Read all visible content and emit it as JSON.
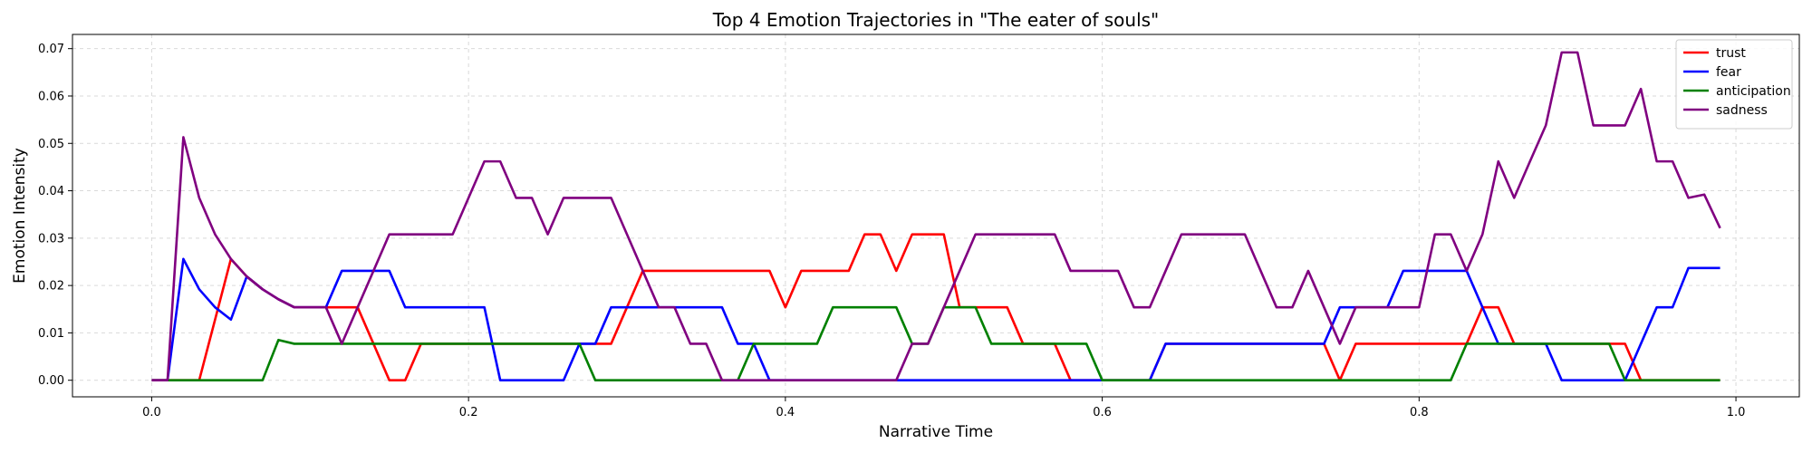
{
  "chart_data": {
    "type": "line",
    "title": "Top 4 Emotion Trajectories in \"The eater of souls\"",
    "xlabel": "Narrative Time",
    "ylabel": "Emotion Intensity",
    "xlim": [
      -0.05,
      1.04
    ],
    "ylim": [
      -0.0035,
      0.073
    ],
    "x_ticks": [
      0.0,
      0.2,
      0.4,
      0.6,
      0.8,
      1.0
    ],
    "x_tick_labels": [
      "0.0",
      "0.2",
      "0.4",
      "0.6",
      "0.8",
      "1.0"
    ],
    "y_ticks": [
      0.0,
      0.01,
      0.02,
      0.03,
      0.04,
      0.05,
      0.06,
      0.07
    ],
    "y_tick_labels": [
      "0.00",
      "0.01",
      "0.02",
      "0.03",
      "0.04",
      "0.05",
      "0.06",
      "0.07"
    ],
    "grid": true,
    "legend_position": "top-right",
    "x": [
      0.0,
      0.01,
      0.02,
      0.03,
      0.04,
      0.05,
      0.06,
      0.07,
      0.08,
      0.09,
      0.1,
      0.11,
      0.12,
      0.13,
      0.14,
      0.15,
      0.16,
      0.17,
      0.18,
      0.19,
      0.2,
      0.21,
      0.22,
      0.23,
      0.24,
      0.25,
      0.26,
      0.27,
      0.28,
      0.29,
      0.3,
      0.31,
      0.32,
      0.33,
      0.34,
      0.35,
      0.36,
      0.37,
      0.38,
      0.39,
      0.4,
      0.41,
      0.42,
      0.43,
      0.44,
      0.45,
      0.46,
      0.47,
      0.48,
      0.49,
      0.5,
      0.51,
      0.52,
      0.53,
      0.54,
      0.55,
      0.56,
      0.57,
      0.58,
      0.59,
      0.6,
      0.61,
      0.62,
      0.63,
      0.64,
      0.65,
      0.66,
      0.67,
      0.68,
      0.69,
      0.7,
      0.71,
      0.72,
      0.73,
      0.74,
      0.75,
      0.76,
      0.77,
      0.78,
      0.79,
      0.8,
      0.81,
      0.82,
      0.83,
      0.84,
      0.85,
      0.86,
      0.87,
      0.88,
      0.89,
      0.9,
      0.91,
      0.92,
      0.93,
      0.94,
      0.95,
      0.96,
      0.97,
      0.98,
      0.99
    ],
    "series": [
      {
        "name": "trust",
        "color": "#ff0000",
        "values": [
          0,
          0,
          0,
          0,
          0.0128,
          0.0256,
          0.0219,
          0.0192,
          0.0171,
          0.0154,
          0.0154,
          0.0154,
          0.0154,
          0.0154,
          0.0077,
          0,
          0,
          0.0077,
          0.0077,
          0.0077,
          0.0077,
          0.0077,
          0.0077,
          0.0077,
          0.0077,
          0.0077,
          0.0077,
          0.0077,
          0.0077,
          0.0077,
          0.0154,
          0.0231,
          0.0231,
          0.0231,
          0.0231,
          0.0231,
          0.0231,
          0.0231,
          0.0231,
          0.0231,
          0.0154,
          0.0231,
          0.0231,
          0.0231,
          0.0231,
          0.0308,
          0.0308,
          0.0231,
          0.0308,
          0.0308,
          0.0308,
          0.0154,
          0.0154,
          0.0154,
          0.0154,
          0.0077,
          0.0077,
          0.0077,
          0,
          0,
          0,
          0,
          0,
          0,
          0.0077,
          0.0077,
          0.0077,
          0.0077,
          0.0077,
          0.0077,
          0.0077,
          0.0077,
          0.0077,
          0.0077,
          0.0077,
          0,
          0.0077,
          0.0077,
          0.0077,
          0.0077,
          0.0077,
          0.0077,
          0.0077,
          0.0077,
          0.0154,
          0.0154,
          0.0077,
          0.0077,
          0.0077,
          0.0077,
          0.0077,
          0.0077,
          0.0077,
          0.0077,
          0,
          0,
          0,
          0,
          0,
          0
        ]
      },
      {
        "name": "fear",
        "color": "#0000ff",
        "values": [
          0,
          0,
          0.0256,
          0.0192,
          0.0154,
          0.0128,
          0.0219,
          0.0192,
          0.0171,
          0.0154,
          0.0154,
          0.0154,
          0.0231,
          0.0231,
          0.0231,
          0.0231,
          0.0154,
          0.0154,
          0.0154,
          0.0154,
          0.0154,
          0.0154,
          0,
          0,
          0,
          0,
          0,
          0.0077,
          0.0077,
          0.0154,
          0.0154,
          0.0154,
          0.0154,
          0.0154,
          0.0154,
          0.0154,
          0.0154,
          0.0077,
          0.0077,
          0,
          0,
          0,
          0,
          0,
          0,
          0,
          0,
          0,
          0,
          0,
          0,
          0,
          0,
          0,
          0,
          0,
          0,
          0,
          0,
          0,
          0,
          0,
          0,
          0,
          0.0077,
          0.0077,
          0.0077,
          0.0077,
          0.0077,
          0.0077,
          0.0077,
          0.0077,
          0.0077,
          0.0077,
          0.0077,
          0.0154,
          0.0154,
          0.0154,
          0.0154,
          0.0231,
          0.0231,
          0.0231,
          0.0231,
          0.0231,
          0.0154,
          0.0077,
          0.0077,
          0.0077,
          0.0077,
          0,
          0,
          0,
          0,
          0,
          0.0077,
          0.0154,
          0.0154,
          0.0237,
          0.0237,
          0.0237
        ]
      },
      {
        "name": "anticipation",
        "color": "#008000",
        "values": [
          0,
          0,
          0,
          0,
          0,
          0,
          0,
          0,
          0.0085,
          0.0077,
          0.0077,
          0.0077,
          0.0077,
          0.0077,
          0.0077,
          0.0077,
          0.0077,
          0.0077,
          0.0077,
          0.0077,
          0.0077,
          0.0077,
          0.0077,
          0.0077,
          0.0077,
          0.0077,
          0.0077,
          0.0077,
          0,
          0,
          0,
          0,
          0,
          0,
          0,
          0,
          0,
          0,
          0.0077,
          0.0077,
          0.0077,
          0.0077,
          0.0077,
          0.0154,
          0.0154,
          0.0154,
          0.0154,
          0.0154,
          0.0077,
          0.0077,
          0.0154,
          0.0154,
          0.0154,
          0.0077,
          0.0077,
          0.0077,
          0.0077,
          0.0077,
          0.0077,
          0.0077,
          0,
          0,
          0,
          0,
          0,
          0,
          0,
          0,
          0,
          0,
          0,
          0,
          0,
          0,
          0,
          0,
          0,
          0,
          0,
          0,
          0,
          0,
          0,
          0.0077,
          0.0077,
          0.0077,
          0.0077,
          0.0077,
          0.0077,
          0.0077,
          0.0077,
          0.0077,
          0.0077,
          0,
          0,
          0,
          0,
          0,
          0,
          0
        ]
      },
      {
        "name": "sadness",
        "color": "#800080",
        "values": [
          0,
          0,
          0.0513,
          0.0385,
          0.0308,
          0.0256,
          0.0219,
          0.0192,
          0.0171,
          0.0154,
          0.0154,
          0.0154,
          0.0077,
          0.0154,
          0.0231,
          0.0308,
          0.0308,
          0.0308,
          0.0308,
          0.0308,
          0.0385,
          0.0462,
          0.0462,
          0.0385,
          0.0385,
          0.0308,
          0.0385,
          0.0385,
          0.0385,
          0.0385,
          0.0308,
          0.0231,
          0.0154,
          0.0154,
          0.0077,
          0.0077,
          0,
          0,
          0,
          0,
          0,
          0,
          0,
          0,
          0,
          0,
          0,
          0,
          0.0077,
          0.0077,
          0.0154,
          0.0231,
          0.0308,
          0.0308,
          0.0308,
          0.0308,
          0.0308,
          0.0308,
          0.0231,
          0.0231,
          0.0231,
          0.0231,
          0.0154,
          0.0154,
          0.0231,
          0.0308,
          0.0308,
          0.0308,
          0.0308,
          0.0308,
          0.0231,
          0.0154,
          0.0154,
          0.0231,
          0.0154,
          0.0077,
          0.0154,
          0.0154,
          0.0154,
          0.0154,
          0.0154,
          0.0308,
          0.0308,
          0.0231,
          0.0308,
          0.0462,
          0.0385,
          0.0462,
          0.0538,
          0.0692,
          0.0692,
          0.0538,
          0.0538,
          0.0538,
          0.0615,
          0.0462,
          0.0462,
          0.0385,
          0.0392,
          0.0321
        ]
      }
    ]
  }
}
